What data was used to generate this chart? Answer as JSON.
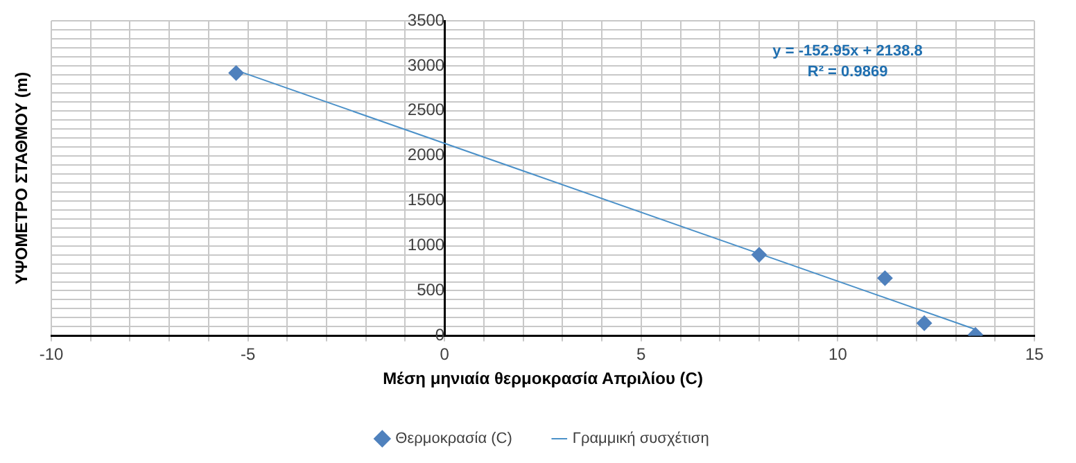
{
  "chart_data": {
    "type": "scatter",
    "xlabel": "Μέση μηνιαία θερμοκρασία Απριλίου (C)",
    "ylabel": "ΥΨΟΜΕΤΡΟ ΣΤΑΘΜΟΥ (m)",
    "xlim": [
      -10,
      15
    ],
    "xticks": [
      -10,
      {
        "value": -9,
        "label": null
      },
      {
        "value": -8,
        "label": null
      },
      {
        "value": -7,
        "label": null
      },
      {
        "value": -6,
        "label": null
      },
      -5,
      {
        "value": -4,
        "label": null
      },
      {
        "value": -3,
        "label": null
      },
      {
        "value": -2,
        "label": null
      },
      {
        "value": -1,
        "label": null
      },
      0,
      {
        "value": 1,
        "label": null
      },
      {
        "value": 2,
        "label": null
      },
      {
        "value": 3,
        "label": null
      },
      {
        "value": 4,
        "label": null
      },
      5,
      {
        "value": 6,
        "label": null
      },
      {
        "value": 7,
        "label": null
      },
      {
        "value": 8,
        "label": null
      },
      {
        "value": 9,
        "label": null
      },
      10,
      {
        "value": 11,
        "label": null
      },
      {
        "value": 12,
        "label": null
      },
      {
        "value": 13,
        "label": null
      },
      {
        "value": 14,
        "label": null
      },
      15
    ],
    "ylim": [
      0,
      3500
    ],
    "yticks": [
      0,
      {
        "value": 100,
        "label": null
      },
      {
        "value": 200,
        "label": null
      },
      {
        "value": 300,
        "label": null
      },
      {
        "value": 400,
        "label": null
      },
      500,
      {
        "value": 600,
        "label": null
      },
      {
        "value": 700,
        "label": null
      },
      {
        "value": 800,
        "label": null
      },
      {
        "value": 900,
        "label": null
      },
      1000,
      {
        "value": 1100,
        "label": null
      },
      {
        "value": 1200,
        "label": null
      },
      {
        "value": 1300,
        "label": null
      },
      {
        "value": 1400,
        "label": null
      },
      1500,
      {
        "value": 1600,
        "label": null
      },
      {
        "value": 1700,
        "label": null
      },
      {
        "value": 1800,
        "label": null
      },
      {
        "value": 1900,
        "label": null
      },
      2000,
      {
        "value": 2100,
        "label": null
      },
      {
        "value": 2200,
        "label": null
      },
      {
        "value": 2300,
        "label": null
      },
      {
        "value": 2400,
        "label": null
      },
      2500,
      {
        "value": 2600,
        "label": null
      },
      {
        "value": 2700,
        "label": null
      },
      {
        "value": 2800,
        "label": null
      },
      {
        "value": 2900,
        "label": null
      },
      3000,
      {
        "value": 3100,
        "label": null
      },
      {
        "value": 3200,
        "label": null
      },
      {
        "value": 3300,
        "label": null
      },
      {
        "value": 3400,
        "label": null
      },
      3500
    ],
    "series": [
      {
        "name": "Θερμοκρασία (C)",
        "color": "#4f81bd",
        "x": [
          -5.3,
          8.0,
          11.2,
          12.2,
          13.5
        ],
        "values": [
          2920,
          900,
          640,
          140,
          10
        ],
        "marker": "diamond"
      },
      {
        "name": "Γραμμική συσχέτιση",
        "type": "line",
        "color": "#4a90c8",
        "x": [
          -5.3,
          13.5
        ],
        "values": [
          2950,
          70
        ],
        "marker": "none"
      }
    ],
    "annotations": [
      "y = -152.95x + 2138.8",
      "R² = 0.9869"
    ],
    "grid": true,
    "legend": "bottom"
  }
}
